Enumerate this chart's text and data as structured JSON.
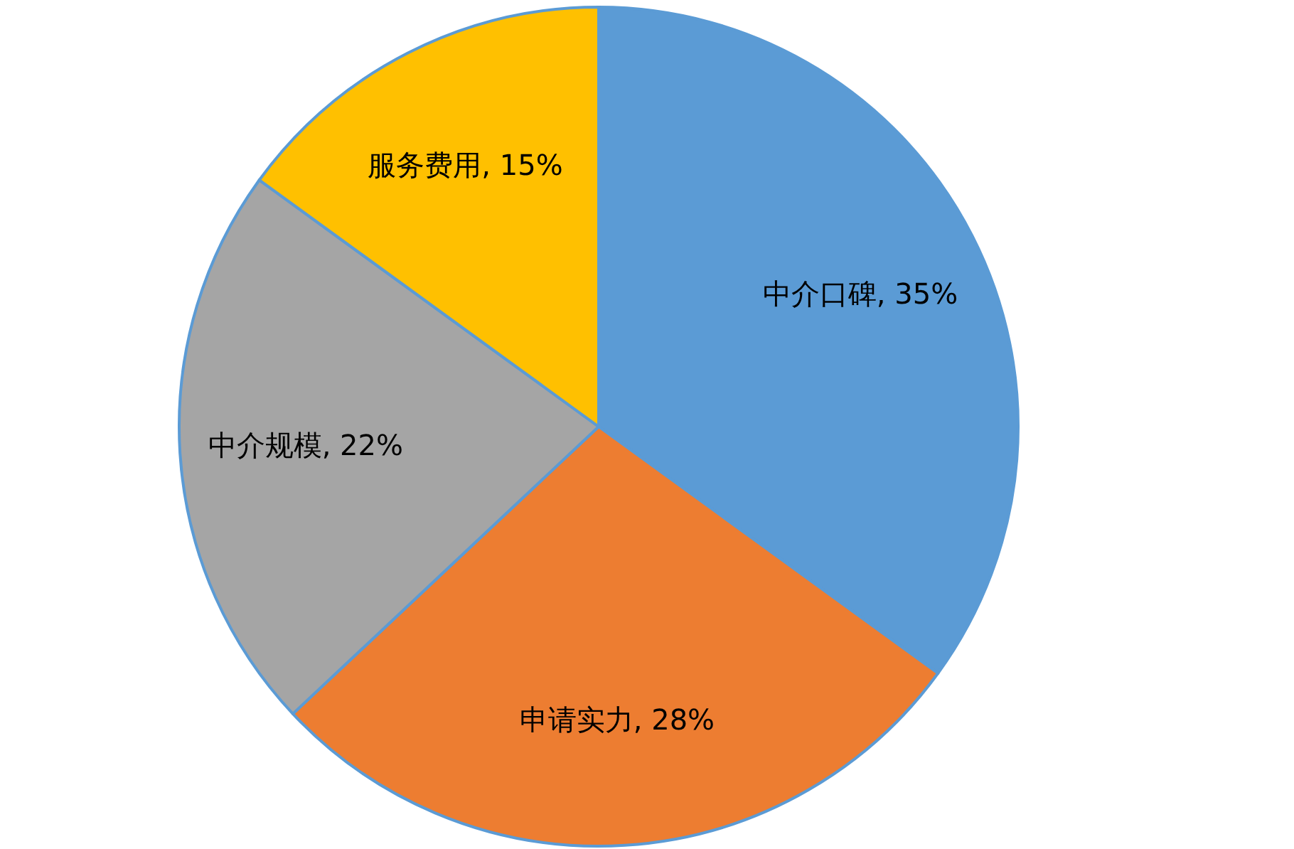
{
  "chart_data": {
    "type": "pie",
    "categories": [
      "中介口碑",
      "申请实力",
      "中介规模",
      "服务费用"
    ],
    "values": [
      35,
      28,
      22,
      15
    ],
    "value_labels": [
      "35%",
      "28%",
      "22%",
      "15%"
    ],
    "colors": [
      "#5b9bd5",
      "#ed7d31",
      "#a5a5a5",
      "#ffc000"
    ]
  }
}
